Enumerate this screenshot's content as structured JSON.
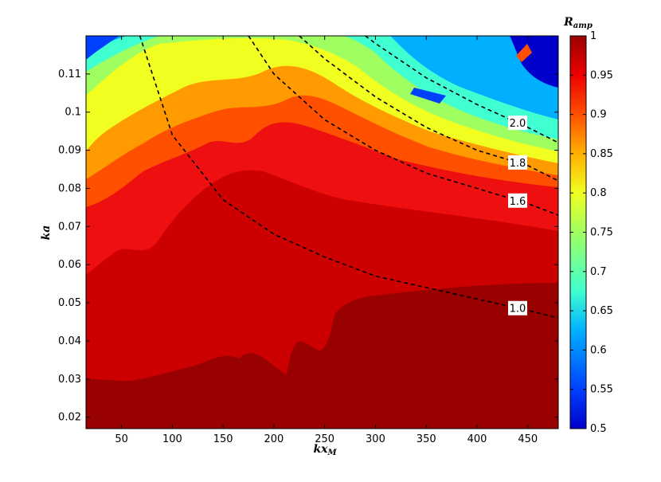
{
  "chart_data": {
    "type": "heatmap",
    "xlabel": "kx",
    "xlabel_sub": "M",
    "ylabel": "ka",
    "xlim": [
      15,
      480
    ],
    "ylim": [
      0.017,
      0.12
    ],
    "xticks": [
      50,
      100,
      150,
      200,
      250,
      300,
      350,
      400,
      450
    ],
    "yticks": [
      0.02,
      0.03,
      0.04,
      0.05,
      0.06,
      0.07,
      0.08,
      0.09,
      0.1,
      0.11
    ],
    "colorbar": {
      "label": "R",
      "label_sub": "amp",
      "range": [
        0.5,
        1
      ],
      "ticks": [
        0.5,
        0.55,
        0.6,
        0.65,
        0.7,
        0.75,
        0.8,
        0.85,
        0.9,
        0.95,
        1
      ]
    },
    "colormap": "jet",
    "contour_lines": [
      {
        "label": "1.0",
        "label_at_x": 440,
        "points": [
          [
            68,
            0.12
          ],
          [
            100,
            0.094
          ],
          [
            150,
            0.077
          ],
          [
            200,
            0.068
          ],
          [
            250,
            0.062
          ],
          [
            300,
            0.057
          ],
          [
            350,
            0.054
          ],
          [
            400,
            0.051
          ],
          [
            450,
            0.048
          ],
          [
            480,
            0.046
          ]
        ]
      },
      {
        "label": "1.6",
        "label_at_x": 440,
        "points": [
          [
            175,
            0.12
          ],
          [
            200,
            0.11
          ],
          [
            250,
            0.098
          ],
          [
            300,
            0.09
          ],
          [
            350,
            0.084
          ],
          [
            400,
            0.08
          ],
          [
            450,
            0.076
          ],
          [
            480,
            0.073
          ]
        ]
      },
      {
        "label": "1.8",
        "label_at_x": 440,
        "points": [
          [
            225,
            0.12
          ],
          [
            250,
            0.114
          ],
          [
            300,
            0.104
          ],
          [
            350,
            0.096
          ],
          [
            400,
            0.09
          ],
          [
            450,
            0.086
          ],
          [
            480,
            0.082
          ]
        ]
      },
      {
        "label": "2.0",
        "label_at_x": 440,
        "points": [
          [
            290,
            0.12
          ],
          [
            300,
            0.118
          ],
          [
            350,
            0.109
          ],
          [
            400,
            0.102
          ],
          [
            450,
            0.096
          ],
          [
            480,
            0.092
          ]
        ]
      }
    ],
    "grid": false
  }
}
